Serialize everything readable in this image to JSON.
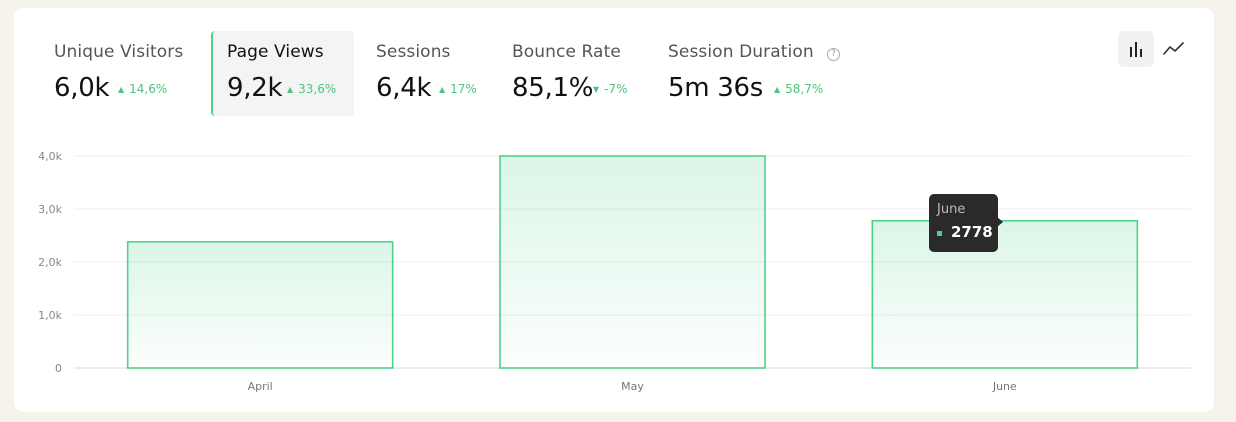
{
  "metrics": [
    {
      "label": "Unique Visitors",
      "value": "6,0k",
      "change": "14,6%",
      "direction": "up",
      "active": false
    },
    {
      "label": "Page Views",
      "value": "9,2k",
      "change": "33,6%",
      "direction": "up",
      "active": true
    },
    {
      "label": "Sessions",
      "value": "6,4k",
      "change": "17%",
      "direction": "up",
      "active": false
    },
    {
      "label": "Bounce Rate",
      "value": "85,1%",
      "change": "-7%",
      "direction": "down",
      "active": false
    },
    {
      "label": "Session Duration",
      "value": "5m 36s",
      "change": "58,7%",
      "direction": "up",
      "active": false
    }
  ],
  "help_icon_glyph": "?",
  "view_toggle": {
    "bar_icon": "bar-chart-icon",
    "line_icon": "line-chart-icon",
    "active": "bar"
  },
  "colors": {
    "accent": "#4fd18b",
    "positive": "#4fc37f",
    "tooltip_bg": "#2a2a2a"
  },
  "tooltip": {
    "title": "June",
    "value": "2778"
  },
  "chart_data": {
    "type": "bar",
    "categories": [
      "April",
      "May",
      "June"
    ],
    "values": [
      2380,
      4000,
      2778
    ],
    "ylim": [
      0,
      4000
    ],
    "yticks": [
      "0",
      "1,0k",
      "2,0k",
      "3,0k",
      "4,0k"
    ],
    "ytick_values": [
      0,
      1000,
      2000,
      3000,
      4000
    ],
    "grid": true,
    "title": "",
    "xlabel": "",
    "ylabel": ""
  }
}
